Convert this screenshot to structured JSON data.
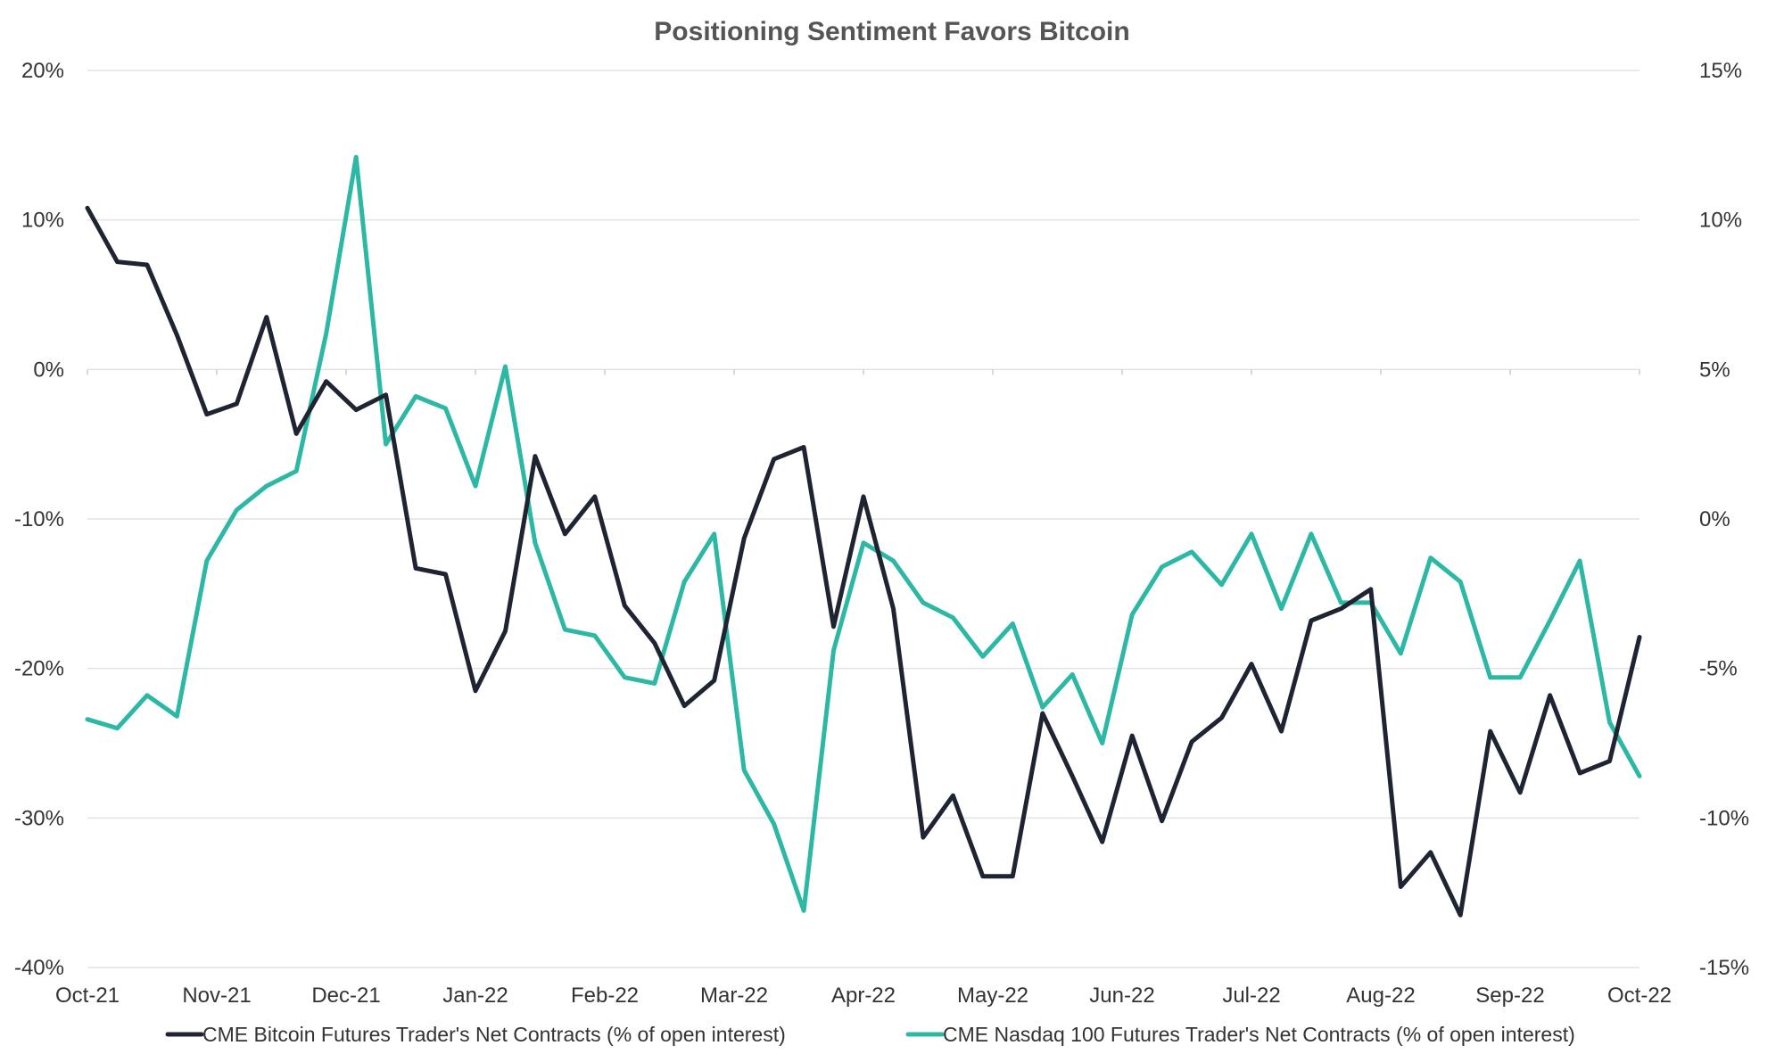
{
  "chart_data": {
    "type": "line",
    "title": "Positioning Sentiment Favors Bitcoin",
    "x_tick_labels": [
      "Oct-21",
      "Nov-21",
      "Dec-21",
      "Jan-22",
      "Feb-22",
      "Mar-22",
      "Apr-22",
      "May-22",
      "Jun-22",
      "Jul-22",
      "Aug-22",
      "Sep-22",
      "Oct-22"
    ],
    "y_left": {
      "ticks": [
        "20%",
        "10%",
        "0%",
        "-10%",
        "-20%",
        "-30%",
        "-40%"
      ],
      "ylim": [
        -40,
        20
      ]
    },
    "y_right": {
      "ticks": [
        "15%",
        "10%",
        "5%",
        "0%",
        "-5%",
        "-10%",
        "-15%"
      ],
      "ylim": [
        -15,
        15
      ]
    },
    "grid": true,
    "legend_position": "bottom",
    "series": [
      {
        "name": "CME Bitcoin Futures Trader's Net Contracts (% of open interest)",
        "axis": "left",
        "color": "#1e2432",
        "values": [
          10.8,
          7.2,
          7.0,
          2.3,
          -3.0,
          -2.3,
          3.5,
          -4.3,
          -0.8,
          -2.7,
          -1.7,
          -13.3,
          -13.7,
          -21.5,
          -17.5,
          -5.8,
          -11.0,
          -8.5,
          -15.8,
          -18.3,
          -22.5,
          -20.8,
          -11.3,
          -6.0,
          -5.2,
          -17.2,
          -8.5,
          -16.0,
          -31.3,
          -28.5,
          -33.9,
          -33.9,
          -23.0,
          -27.2,
          -31.6,
          -24.5,
          -30.2,
          -24.9,
          -23.3,
          -19.7,
          -24.2,
          -16.8,
          -16.0,
          -14.7,
          -34.6,
          -32.3,
          -36.5,
          -24.2,
          -28.3,
          -21.8,
          -27.0,
          -26.2,
          -17.9
        ]
      },
      {
        "name": "CME Nasdaq 100 Futures Trader's Net Contracts (% of open interest)",
        "axis": "right",
        "color": "#2cb8a4",
        "values": [
          -6.7,
          -7.0,
          -5.9,
          -6.6,
          -1.4,
          0.3,
          1.1,
          1.6,
          6.2,
          12.1,
          2.5,
          4.1,
          3.7,
          1.1,
          5.1,
          -0.8,
          -3.7,
          -3.9,
          -5.3,
          -5.5,
          -2.1,
          -0.5,
          -8.4,
          -10.2,
          -13.1,
          -4.4,
          -0.8,
          -1.4,
          -2.8,
          -3.3,
          -4.6,
          -3.5,
          -6.3,
          -5.2,
          -7.5,
          -3.2,
          -1.6,
          -1.1,
          -2.2,
          -0.5,
          -3.0,
          -0.5,
          -2.8,
          -2.8,
          -4.5,
          -1.3,
          -2.1,
          -5.3,
          -5.3,
          -3.4,
          -1.4,
          -6.8,
          -8.6
        ]
      }
    ]
  }
}
